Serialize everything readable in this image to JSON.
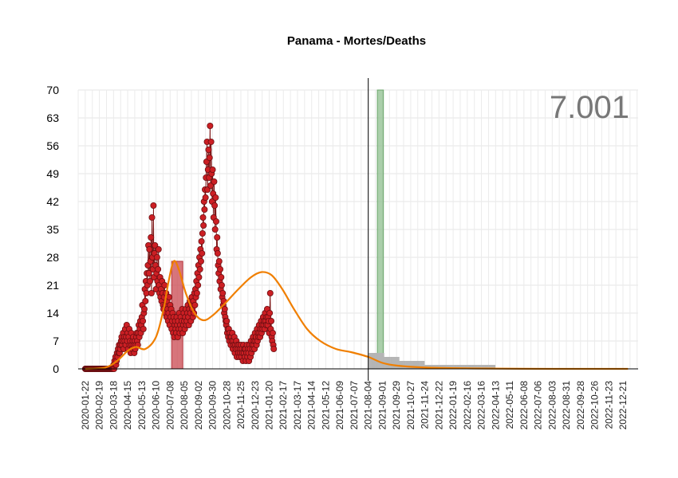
{
  "chart_data": {
    "type": "line",
    "title": "Panama - Mortes/Deaths",
    "xlabel": "",
    "ylabel": "",
    "x_range": [
      "2020-01-08",
      "2023-01-20"
    ],
    "ylim": [
      0,
      70
    ],
    "y_ticks": [
      0,
      7,
      14,
      21,
      28,
      35,
      42,
      49,
      56,
      63,
      70
    ],
    "x_tick_labels": [
      "2020-01-22",
      "2020-02-19",
      "2020-03-18",
      "2020-04-15",
      "2020-05-13",
      "2020-06-10",
      "2020-07-08",
      "2020-08-05",
      "2020-09-02",
      "2020-09-30",
      "2020-10-28",
      "2020-11-25",
      "2020-12-23",
      "2021-01-20",
      "2021-02-17",
      "2021-03-17",
      "2021-04-14",
      "2021-05-12",
      "2021-06-09",
      "2021-07-07",
      "2021-08-04",
      "2021-09-01",
      "2021-09-29",
      "2021-10-27",
      "2021-11-24",
      "2021-12-22",
      "2022-01-19",
      "2022-02-16",
      "2022-03-16",
      "2022-04-13",
      "2022-05-11",
      "2022-06-08",
      "2022-07-06",
      "2022-08-03",
      "2022-08-31",
      "2022-09-28",
      "2022-10-26",
      "2022-11-23",
      "2022-12-21"
    ],
    "annotation": "7.001",
    "vertical_line_date": "2021-08-04",
    "grid": true,
    "colors": {
      "points": "#cc1f24",
      "points_edge": "#6b0f12",
      "stem": "#7a1010",
      "trend": "#f07f00",
      "red_band": "#c9474f",
      "green_band": "#8fbf8f",
      "projection": "#b5b5b5",
      "annotation": "#777777"
    },
    "highlight_bands": [
      {
        "start": "2020-07-11",
        "end": "2020-08-02",
        "value": 27,
        "color": "red"
      },
      {
        "start": "2021-08-22",
        "end": "2021-09-03",
        "value": 70,
        "color": "green"
      }
    ],
    "series": [
      {
        "type": "points",
        "date_start": "2020-01-22",
        "values": [
          0,
          0,
          0,
          0,
          0,
          0,
          0,
          0,
          0,
          0,
          0,
          0,
          0,
          0,
          0,
          0,
          0,
          0,
          0,
          0,
          0,
          0,
          0,
          0,
          0,
          0,
          0,
          0,
          0,
          0,
          0,
          0,
          0,
          0,
          0,
          0,
          0,
          0,
          0,
          0,
          0,
          0,
          0,
          0,
          0,
          0,
          0,
          0,
          0,
          0,
          0,
          0,
          0,
          0,
          0,
          0,
          1,
          0,
          2,
          1,
          3,
          1,
          2,
          4,
          3,
          5,
          4,
          6,
          4,
          5,
          6,
          7,
          8,
          6,
          7,
          9,
          5,
          8,
          7,
          10,
          6,
          8,
          11,
          7,
          9,
          5,
          8,
          10,
          6,
          7,
          4,
          9,
          6,
          5,
          7,
          8,
          6,
          4,
          7,
          5,
          6,
          8,
          9,
          7,
          6,
          9,
          11,
          8,
          10,
          12,
          9,
          11,
          13,
          16,
          12,
          10,
          14,
          15,
          20,
          17,
          22,
          19,
          24,
          21,
          26,
          31,
          24,
          30,
          22,
          27,
          33,
          19,
          38,
          28,
          25,
          41,
          23,
          29,
          31,
          26,
          20,
          24,
          28,
          22,
          25,
          30,
          21,
          19,
          23,
          18,
          20,
          17,
          22,
          19,
          16,
          15,
          18,
          21,
          14,
          16,
          19,
          13,
          17,
          15,
          12,
          14,
          18,
          11,
          16,
          13,
          15,
          10,
          12,
          14,
          9,
          13,
          8,
          11,
          12,
          10,
          9,
          13,
          11,
          8,
          12,
          10,
          14,
          9,
          11,
          13,
          10,
          12,
          15,
          9,
          11,
          14,
          12,
          10,
          13,
          15,
          11,
          12,
          14,
          16,
          13,
          11,
          15,
          17,
          14,
          12,
          16,
          18,
          15,
          13,
          17,
          14,
          19,
          16,
          20,
          18,
          22,
          19,
          24,
          21,
          26,
          23,
          28,
          25,
          30,
          27,
          32,
          29,
          34,
          38,
          36,
          42,
          40,
          45,
          43,
          48,
          52,
          57,
          45,
          50,
          55,
          48,
          53,
          61,
          46,
          57,
          49,
          42,
          50,
          44,
          38,
          47,
          41,
          35,
          43,
          37,
          30,
          33,
          29,
          26,
          24,
          27,
          22,
          25,
          20,
          23,
          21,
          18,
          19,
          16,
          17,
          14,
          15,
          13,
          12,
          11,
          12,
          9,
          10,
          8,
          10,
          7,
          9,
          8,
          6,
          8,
          7,
          9,
          5,
          7,
          6,
          8,
          4,
          6,
          5,
          7,
          3,
          6,
          5,
          4,
          6,
          3,
          5,
          4,
          6,
          3,
          5,
          4,
          2,
          6,
          4,
          5,
          3,
          5,
          2,
          4,
          6,
          3,
          5,
          4,
          2,
          6,
          5,
          3,
          7,
          4,
          6,
          5,
          8,
          6,
          7,
          5,
          9,
          7,
          8,
          6,
          10,
          7,
          9,
          8,
          11,
          9,
          8,
          10,
          12,
          9,
          11,
          10,
          13,
          11,
          12,
          10,
          14,
          12,
          11,
          13,
          15,
          11,
          13,
          12,
          9,
          14,
          19,
          10,
          12,
          8,
          7,
          9,
          6,
          5
        ],
        "color": "#cc1f24"
      },
      {
        "type": "projection",
        "date_start": "2021-08-05",
        "values": [
          4,
          4,
          4,
          4,
          4,
          4,
          4,
          4,
          4,
          4,
          4,
          4,
          4,
          4,
          4,
          4,
          4,
          4,
          4,
          4,
          4,
          4,
          4,
          4,
          4,
          4,
          4,
          4,
          4,
          4,
          3,
          3,
          3,
          3,
          3,
          3,
          3,
          3,
          3,
          3,
          3,
          3,
          3,
          3,
          3,
          3,
          3,
          3,
          3,
          3,
          3,
          3,
          3,
          3,
          3,
          3,
          3,
          3,
          3,
          3,
          2,
          2,
          2,
          2,
          2,
          2,
          2,
          2,
          2,
          2,
          2,
          2,
          2,
          2,
          2,
          2,
          2,
          2,
          2,
          2,
          2,
          2,
          2,
          2,
          2,
          2,
          2,
          2,
          2,
          2,
          2,
          2,
          2,
          2,
          2,
          2,
          2,
          2,
          2,
          2,
          2,
          2,
          2,
          2,
          2,
          2,
          2,
          2,
          2,
          2,
          1,
          1,
          1,
          1,
          1,
          1,
          1,
          1,
          1,
          1,
          1,
          1,
          1,
          1,
          1,
          1,
          1,
          1,
          1,
          1,
          1,
          1,
          1,
          1,
          1,
          1,
          1,
          1,
          1,
          1,
          1,
          1,
          1,
          1,
          1,
          1,
          1,
          1,
          1,
          1,
          1,
          1,
          1,
          1,
          1,
          1,
          1,
          1,
          1,
          1,
          1,
          1,
          1,
          1,
          1,
          1,
          1,
          1,
          1,
          1,
          1,
          1,
          1,
          1,
          1,
          1,
          1,
          1,
          1,
          1,
          1,
          1,
          1,
          1,
          1,
          1,
          1,
          1,
          1,
          1,
          1,
          1,
          1,
          1,
          1,
          1,
          1,
          1,
          1,
          1,
          1,
          1,
          1,
          1,
          1,
          1,
          1,
          1,
          1,
          1,
          1,
          1,
          1,
          1,
          1,
          1,
          1,
          1,
          1,
          1,
          1,
          1,
          1,
          1,
          1,
          1,
          1,
          1,
          1,
          1,
          1,
          1,
          1,
          1,
          1,
          1,
          1,
          1,
          1,
          1,
          1,
          1,
          1,
          1,
          1,
          1,
          1,
          1,
          1,
          1
        ],
        "color": "#b5b5b5"
      },
      {
        "type": "trend",
        "points": [
          [
            "2020-01-22",
            0
          ],
          [
            "2020-03-01",
            0.3
          ],
          [
            "2020-03-25",
            2
          ],
          [
            "2020-04-15",
            4.5
          ],
          [
            "2020-05-01",
            5.5
          ],
          [
            "2020-05-20",
            5
          ],
          [
            "2020-06-10",
            8
          ],
          [
            "2020-06-25",
            15
          ],
          [
            "2020-07-05",
            22
          ],
          [
            "2020-07-15",
            27
          ],
          [
            "2020-07-25",
            25
          ],
          [
            "2020-08-08",
            19
          ],
          [
            "2020-08-25",
            14
          ],
          [
            "2020-09-12",
            12.2
          ],
          [
            "2020-10-01",
            13.5
          ],
          [
            "2020-10-25",
            16.5
          ],
          [
            "2020-11-20",
            20
          ],
          [
            "2020-12-15",
            23
          ],
          [
            "2021-01-05",
            24.3
          ],
          [
            "2021-01-25",
            23.5
          ],
          [
            "2021-02-15",
            20
          ],
          [
            "2021-03-10",
            15
          ],
          [
            "2021-04-05",
            10
          ],
          [
            "2021-05-01",
            7
          ],
          [
            "2021-06-01",
            5
          ],
          [
            "2021-07-01",
            4.2
          ],
          [
            "2021-08-04",
            3
          ],
          [
            "2021-09-01",
            1.5
          ],
          [
            "2021-10-01",
            0.8
          ],
          [
            "2021-12-01",
            0.3
          ],
          [
            "2022-03-01",
            0.1
          ],
          [
            "2022-08-01",
            0
          ],
          [
            "2022-12-31",
            0
          ]
        ],
        "color": "#f07f00"
      }
    ]
  }
}
